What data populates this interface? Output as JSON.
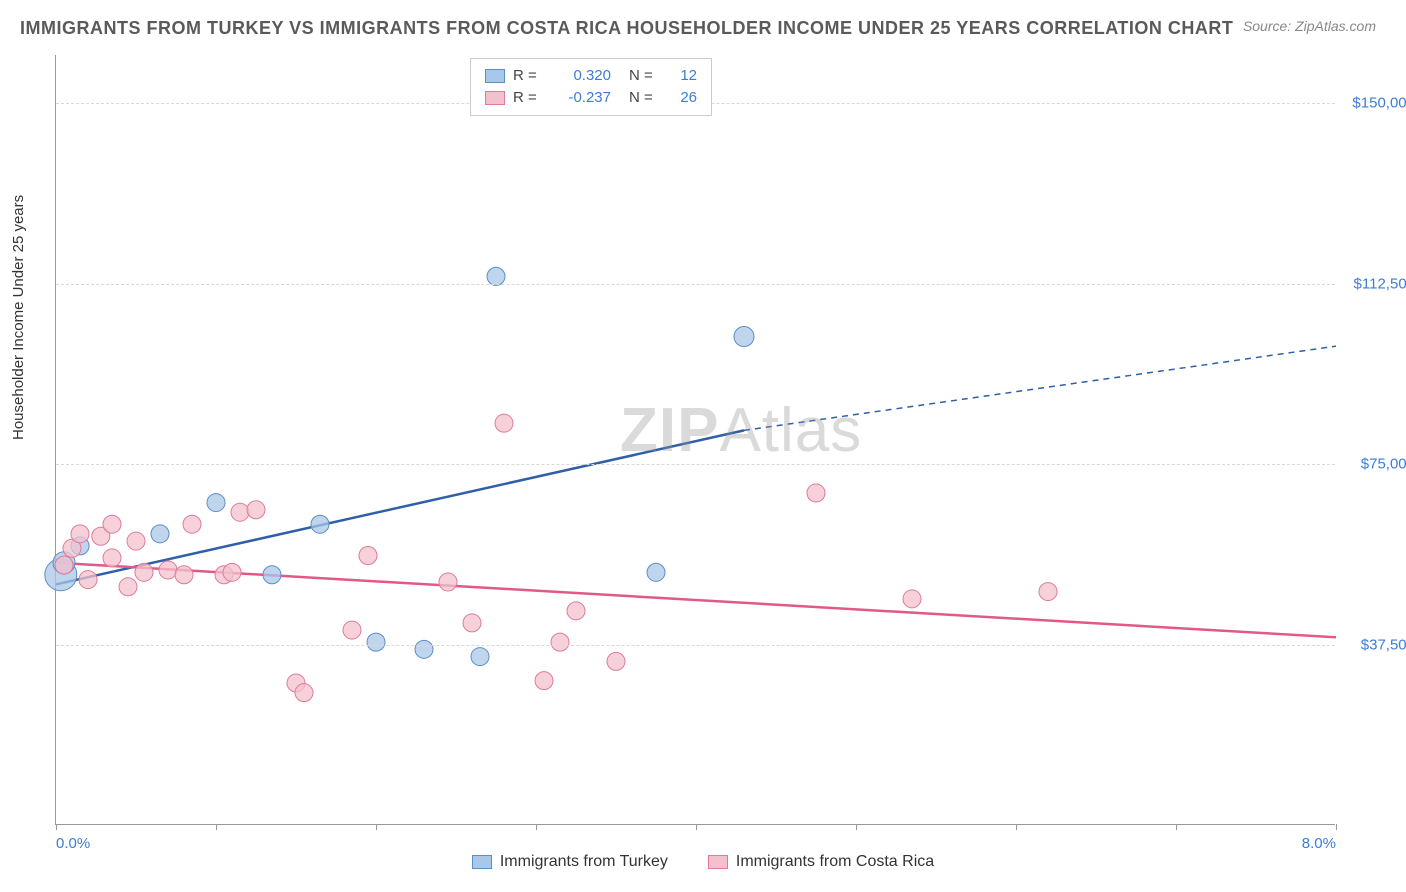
{
  "title": "IMMIGRANTS FROM TURKEY VS IMMIGRANTS FROM COSTA RICA HOUSEHOLDER INCOME UNDER 25 YEARS CORRELATION CHART",
  "source": "Source: ZipAtlas.com",
  "ylabel": "Householder Income Under 25 years",
  "watermark_bold": "ZIP",
  "watermark_rest": "Atlas",
  "chart": {
    "type": "scatter-with-trendlines",
    "background_color": "#ffffff",
    "grid_color": "#d8d8d8",
    "axis_color": "#999999",
    "text_color": "#5a5a5a",
    "tick_label_color": "#3b7dd8",
    "xlim": [
      0,
      8
    ],
    "ylim": [
      0,
      160000
    ],
    "x_tick_positions": [
      0,
      1,
      2,
      3,
      4,
      5,
      6,
      7,
      8
    ],
    "x_tick_labels_shown": {
      "0": "0.0%",
      "8": "8.0%"
    },
    "y_gridlines": [
      37500,
      75000,
      112500,
      150000
    ],
    "y_tick_labels": [
      "$37,500",
      "$75,000",
      "$112,500",
      "$150,000"
    ],
    "marker_radius": 9,
    "marker_stroke_width": 1,
    "trendline_width": 2.5,
    "series": [
      {
        "name": "Immigrants from Turkey",
        "key": "turkey",
        "fill_color": "#a9c7e8",
        "stroke_color": "#5b8fc7",
        "trend_color": "#2f5fa8",
        "r": "0.320",
        "n": "12",
        "points": [
          [
            0.03,
            52000,
            16
          ],
          [
            0.05,
            54500,
            11
          ],
          [
            0.15,
            58000,
            9
          ],
          [
            0.65,
            60500,
            9
          ],
          [
            1.0,
            67000,
            9
          ],
          [
            1.35,
            52000,
            9
          ],
          [
            1.65,
            62500,
            9
          ],
          [
            2.0,
            38000,
            9
          ],
          [
            2.3,
            36500,
            9
          ],
          [
            2.65,
            35000,
            9
          ],
          [
            2.75,
            114000,
            9
          ],
          [
            3.75,
            52500,
            9
          ],
          [
            4.3,
            101500,
            10
          ]
        ],
        "trendline": {
          "x1": 0.0,
          "y1": 50000,
          "x2": 4.3,
          "y2": 82000,
          "x2_ext": 8.0,
          "y2_ext": 99500
        }
      },
      {
        "name": "Immigrants from Costa Rica",
        "key": "costarica",
        "fill_color": "#f3c1ce",
        "stroke_color": "#e07a9a",
        "trend_color": "#e05a85",
        "r": "-0.237",
        "n": "26",
        "points": [
          [
            0.05,
            54000,
            9
          ],
          [
            0.1,
            57500,
            9
          ],
          [
            0.15,
            60500,
            9
          ],
          [
            0.2,
            51000,
            9
          ],
          [
            0.28,
            60000,
            9
          ],
          [
            0.35,
            55500,
            9
          ],
          [
            0.35,
            62500,
            9
          ],
          [
            0.45,
            49500,
            9
          ],
          [
            0.5,
            59000,
            9
          ],
          [
            0.55,
            52500,
            9
          ],
          [
            0.7,
            53000,
            9
          ],
          [
            0.8,
            52000,
            9
          ],
          [
            0.85,
            62500,
            9
          ],
          [
            1.05,
            52000,
            9
          ],
          [
            1.1,
            52500,
            9
          ],
          [
            1.15,
            65000,
            9
          ],
          [
            1.25,
            65500,
            9
          ],
          [
            1.5,
            29500,
            9
          ],
          [
            1.55,
            27500,
            9
          ],
          [
            1.85,
            40500,
            9
          ],
          [
            1.95,
            56000,
            9
          ],
          [
            2.45,
            50500,
            9
          ],
          [
            2.6,
            42000,
            9
          ],
          [
            2.8,
            83500,
            9
          ],
          [
            3.05,
            30000,
            9
          ],
          [
            3.15,
            38000,
            9
          ],
          [
            3.25,
            44500,
            9
          ],
          [
            3.5,
            34000,
            9
          ],
          [
            4.75,
            69000,
            9
          ],
          [
            5.35,
            47000,
            9
          ],
          [
            6.2,
            48500,
            9
          ]
        ],
        "trendline": {
          "x1": 0.0,
          "y1": 54500,
          "x2": 8.0,
          "y2": 39000
        }
      }
    ]
  },
  "legend_top": {
    "r_label": "R  =",
    "n_label": "N  ="
  },
  "legend_bottom": [
    {
      "series": "turkey"
    },
    {
      "series": "costarica"
    }
  ]
}
